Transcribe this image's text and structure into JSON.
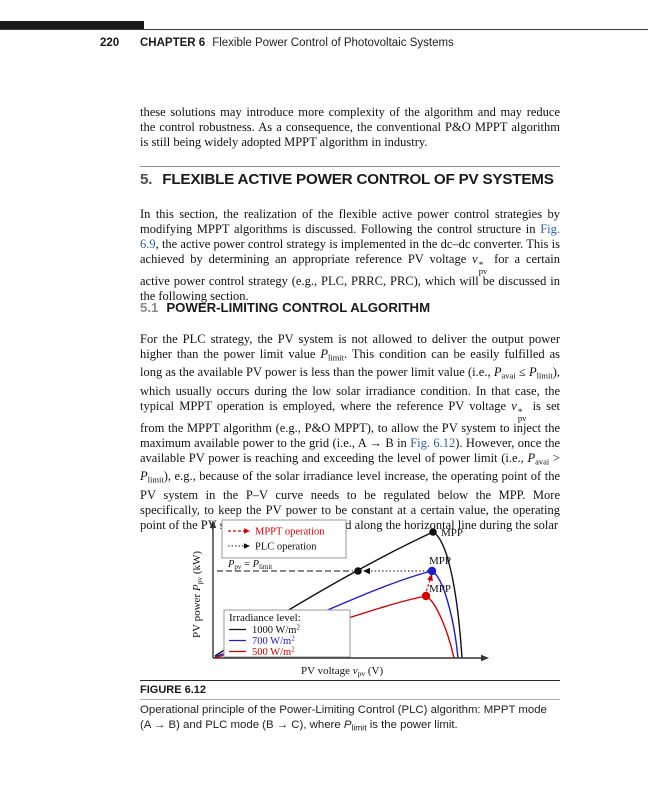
{
  "colors": {
    "link": "#2e5fa3",
    "curve_black": "#111111",
    "curve_blue": "#1c1ccd",
    "curve_red": "#d60000"
  },
  "header": {
    "page_number": "220",
    "chapter_label": "CHAPTER 6",
    "chapter_title": "Flexible Power Control of Photovoltaic Systems"
  },
  "intro_paragraph": {
    "runs": [
      [
        "n",
        "these solutions may introduce more complexity of the algorithm and may reduce the control robustness. As a consequence, the conventional P&O MPPT algorithm is still being widely adopted MPPT algorithm in industry."
      ]
    ]
  },
  "section": {
    "number": "5.",
    "title": "FLEXIBLE ACTIVE POWER CONTROL OF PV SYSTEMS",
    "paragraph_runs": [
      [
        "n",
        "In this section, the realization of the flexible active power control strategies by modifying MPPT algorithms is discussed. Following the control structure in "
      ],
      [
        "l",
        "Fig. 6.9"
      ],
      [
        "n",
        ", the active power control strategy is implemented in the dc–dc converter. This is achieved by determining an appropriate reference PV voltage "
      ],
      [
        "i",
        "v"
      ],
      [
        "st",
        "*|pv"
      ],
      [
        "n",
        " for a certain active power control strategy (e.g., PLC, PRRC, PRC), which will be discussed in the following section."
      ]
    ]
  },
  "subsection": {
    "number": "5.1",
    "title": "POWER-LIMITING CONTROL ALGORITHM",
    "paragraph_runs": [
      [
        "n",
        "For the PLC strategy, the PV system is not allowed to deliver the output power higher than the power limit value "
      ],
      [
        "i",
        "P"
      ],
      [
        "s",
        "limit"
      ],
      [
        "n",
        ". This condition can be easily fulfilled as long as the available PV power is less than the power limit value (i.e., "
      ],
      [
        "i",
        "P"
      ],
      [
        "s",
        "avai"
      ],
      [
        "n",
        " ≤ "
      ],
      [
        "i",
        "P"
      ],
      [
        "s",
        "limit"
      ],
      [
        "n",
        "), which usually occurs during the low solar irradiance condition. In that case, the typical MPPT operation is employed, where the reference PV voltage "
      ],
      [
        "i",
        "v"
      ],
      [
        "st",
        "*|pv"
      ],
      [
        "n",
        " is set from the MPPT algorithm (e.g., P&O MPPT), to allow the PV system to inject the maximum available power to the grid (i.e., A → B in "
      ],
      [
        "l",
        "Fig. 6.12"
      ],
      [
        "n",
        "). However, once the available PV power is reaching and exceeding the level of power limit (i.e., "
      ],
      [
        "i",
        "P"
      ],
      [
        "s",
        "avai"
      ],
      [
        "n",
        " > "
      ],
      [
        "i",
        "P"
      ],
      [
        "s",
        "limit"
      ],
      [
        "n",
        "), e.g., because of the solar irradiance level increase, the operating point of the PV system in the P–V curve needs to be regulated below the MPP. More specifically, to keep the PV power to be constant at a certain value, the operating point of the PV system has to be regulated along the horizontal line during the solar"
      ]
    ]
  },
  "figure": {
    "mpp_label": "MPP",
    "plimit": {
      "var1": "P",
      "sub1": "pv",
      "eq": " = ",
      "var2": "P",
      "sub2": "limit"
    },
    "op_legend": {
      "mppt": "MPPT operation",
      "plc": "PLC operation"
    },
    "irr_legend": {
      "title": "Irradiance level:",
      "e1": "1000 W/m",
      "e2": "700 W/m",
      "e3": "500 W/m",
      "exp": "2"
    },
    "ylabel": {
      "pre": "PV power ",
      "var": "P",
      "sub": "pv",
      "post": " (kW)"
    },
    "xlabel": {
      "pre": "PV voltage ",
      "var": "v",
      "sub": "pv",
      "post": " (V)"
    }
  },
  "chart_data": {
    "type": "line",
    "title": "",
    "xlabel": "PV voltage vpv (V)",
    "ylabel": "PV power Ppv (kW)",
    "axis_ticks": "none (qualitative P–V curves)",
    "legend_position": "lower-left box inside plot",
    "legend_title": "Irradiance level:",
    "series": [
      {
        "name": "1000 W/m2",
        "color": "#111111",
        "annotation": "MPP marked with black dot at curve peak"
      },
      {
        "name": "700 W/m2",
        "color": "#1c1ccd",
        "annotation": "MPP marked with blue dot at curve peak"
      },
      {
        "name": "500 W/m2",
        "color": "#d60000",
        "annotation": "MPP marked with red dot at curve peak"
      }
    ],
    "annotations": [
      "Dashed horizontal line labeled Ppv = Plimit crossing the 1000 W/m2 curve at a black dot",
      "Red dashed vertical arrow from 500 W/m2 MPP up to 700 W/m2 MPP = MPPT operation",
      "Black dotted horizontal arrow from 700 W/m2 MPP left to the power-limit point = PLC operation"
    ]
  },
  "caption": {
    "label": "FIGURE 6.12",
    "runs": [
      [
        "n",
        "Operational principle of the Power-Limiting Control (PLC) algorithm: MPPT mode"
      ],
      [
        "br",
        ""
      ],
      [
        "n",
        "(A → B) and PLC mode (B → C), where "
      ],
      [
        "i",
        "P"
      ],
      [
        "s",
        "limit"
      ],
      [
        "n",
        " is the power limit."
      ]
    ]
  }
}
